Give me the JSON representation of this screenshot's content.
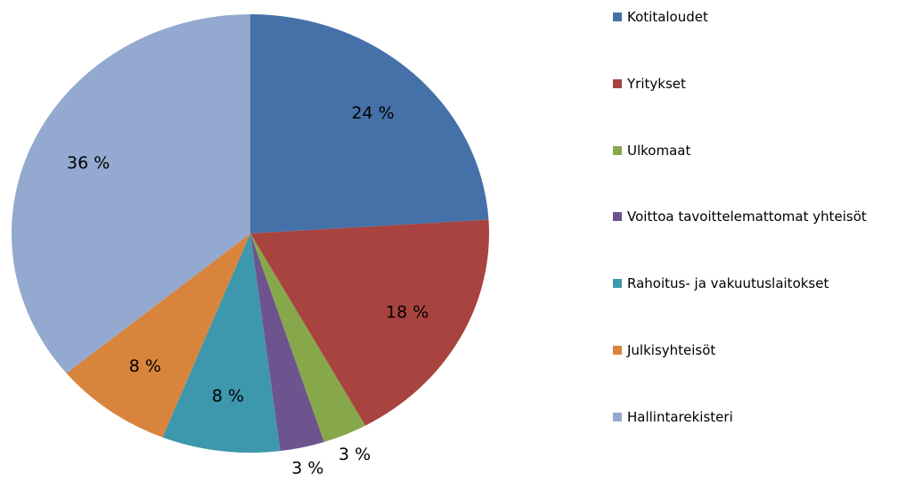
{
  "chart_data": {
    "type": "pie",
    "categories": [
      "Kotitaloudet",
      "Yritykset",
      "Ulkomaat",
      "Voittoa tavoittelemattomat yhteisöt",
      "Rahoitus- ja vakuutuslaitokset",
      "Julkisyhteisöt",
      "Hallintarekisteri"
    ],
    "values": [
      24,
      18,
      3,
      3,
      8,
      8,
      36
    ],
    "value_labels": [
      "24 %",
      "18 %",
      "3 %",
      "3 %",
      "8 %",
      "8 %",
      "36 %"
    ],
    "colors": [
      "#4571a8",
      "#a84340",
      "#87a84a",
      "#6e548f",
      "#3d97ad",
      "#d9843d",
      "#93a9cf"
    ],
    "legend": "right"
  }
}
